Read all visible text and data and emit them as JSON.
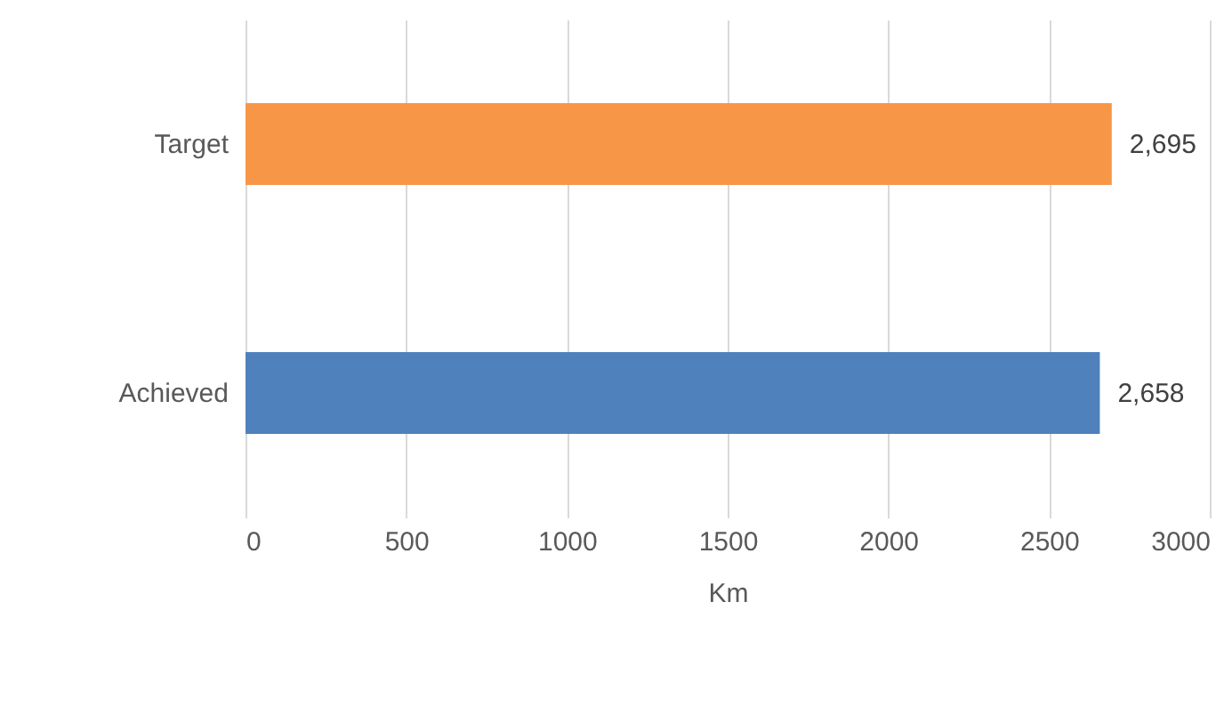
{
  "chart_data": {
    "type": "bar",
    "orientation": "horizontal",
    "categories": [
      "Target",
      "Achieved"
    ],
    "values": [
      2695,
      2658
    ],
    "colors": [
      "#f79646",
      "#4f81bd"
    ],
    "value_labels": [
      "2,695",
      "2,658"
    ],
    "xlabel": "Km",
    "xlim": [
      0,
      3000
    ],
    "xticks": [
      0,
      500,
      1000,
      1500,
      2000,
      2500,
      3000
    ],
    "grid": "x"
  }
}
